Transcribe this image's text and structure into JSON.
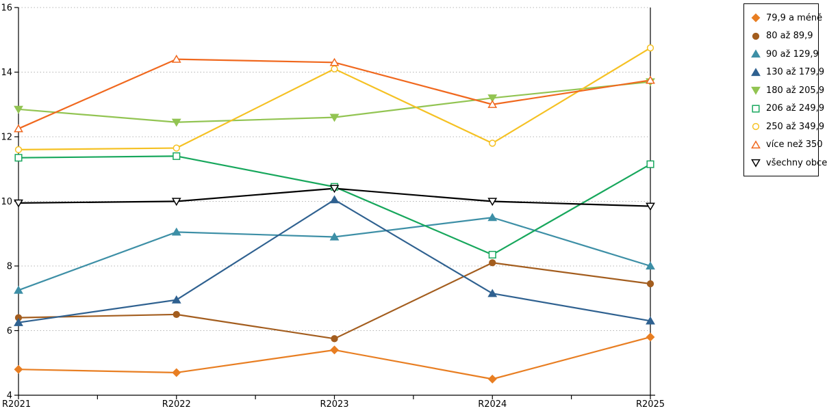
{
  "chart_data": {
    "type": "line",
    "title": "",
    "xlabel": "",
    "ylabel": "",
    "x_categories": [
      "R2021",
      "R2022",
      "R2023",
      "R2024",
      "R2025"
    ],
    "ylim": [
      4,
      16
    ],
    "ytick_step": 2,
    "grid": "horizontal-dotted",
    "grid_color": "#b3b3b3",
    "axis_color": "#000000",
    "legend_position": "top-right",
    "series": [
      {
        "name": "79,9 a méně",
        "color": "#E87E22",
        "marker": "diamond",
        "fill": "solid",
        "values": [
          4.8,
          4.7,
          5.4,
          4.5,
          5.8
        ]
      },
      {
        "name": "80 až 89,9",
        "color": "#A35D1E",
        "marker": "circle",
        "fill": "solid",
        "values": [
          6.4,
          6.5,
          5.75,
          8.1,
          7.45
        ]
      },
      {
        "name": "90 až 129,9",
        "color": "#3D8FA6",
        "marker": "triangle-up",
        "fill": "solid",
        "values": [
          7.25,
          9.05,
          8.9,
          9.5,
          8.0
        ]
      },
      {
        "name": "130 až 179,9",
        "color": "#2F6190",
        "marker": "triangle-up",
        "fill": "solid",
        "values": [
          6.25,
          6.95,
          10.05,
          7.15,
          6.3
        ]
      },
      {
        "name": "180 až 205,9",
        "color": "#92C452",
        "marker": "triangle-down",
        "fill": "solid",
        "values": [
          12.85,
          12.45,
          12.6,
          13.2,
          13.7
        ]
      },
      {
        "name": "206 až 249,9",
        "color": "#17A75C",
        "marker": "square",
        "fill": "open",
        "values": [
          11.35,
          11.4,
          10.45,
          8.35,
          11.15
        ]
      },
      {
        "name": "250 až 349,9",
        "color": "#F5C123",
        "marker": "circle",
        "fill": "open",
        "values": [
          11.6,
          11.65,
          14.1,
          11.8,
          14.75
        ]
      },
      {
        "name": "více než 350",
        "color": "#F0681E",
        "marker": "triangle-up",
        "fill": "open",
        "values": [
          12.25,
          14.4,
          14.3,
          13.0,
          13.75
        ]
      },
      {
        "name": "všechny obce",
        "color": "#000000",
        "marker": "triangle-down",
        "fill": "open",
        "values": [
          9.95,
          10.0,
          10.4,
          10.0,
          9.85
        ]
      }
    ]
  }
}
